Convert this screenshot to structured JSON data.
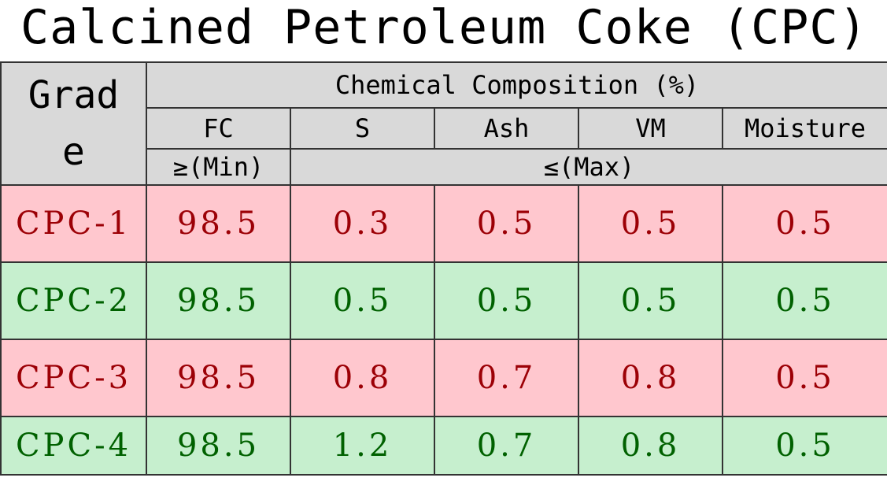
{
  "title": "Calcined Petroleum Coke (CPC)",
  "table": {
    "header": {
      "grade": "Grade",
      "group": "Chemical Composition (%)",
      "columns": [
        "FC",
        "S",
        "Ash",
        "VM",
        "Moisture"
      ],
      "limits": [
        "≥(Min)",
        "≤(Max)"
      ]
    },
    "rows": [
      [
        "CPC-1",
        98.5,
        0.3,
        0.5,
        0.5,
        0.5
      ],
      [
        "CPC-2",
        98.5,
        0.5,
        0.5,
        0.5,
        0.5
      ],
      [
        "CPC-3",
        98.5,
        0.8,
        0.7,
        0.8,
        0.5
      ],
      [
        "CPC-4",
        98.5,
        1.2,
        0.7,
        0.8,
        0.5
      ]
    ]
  }
}
